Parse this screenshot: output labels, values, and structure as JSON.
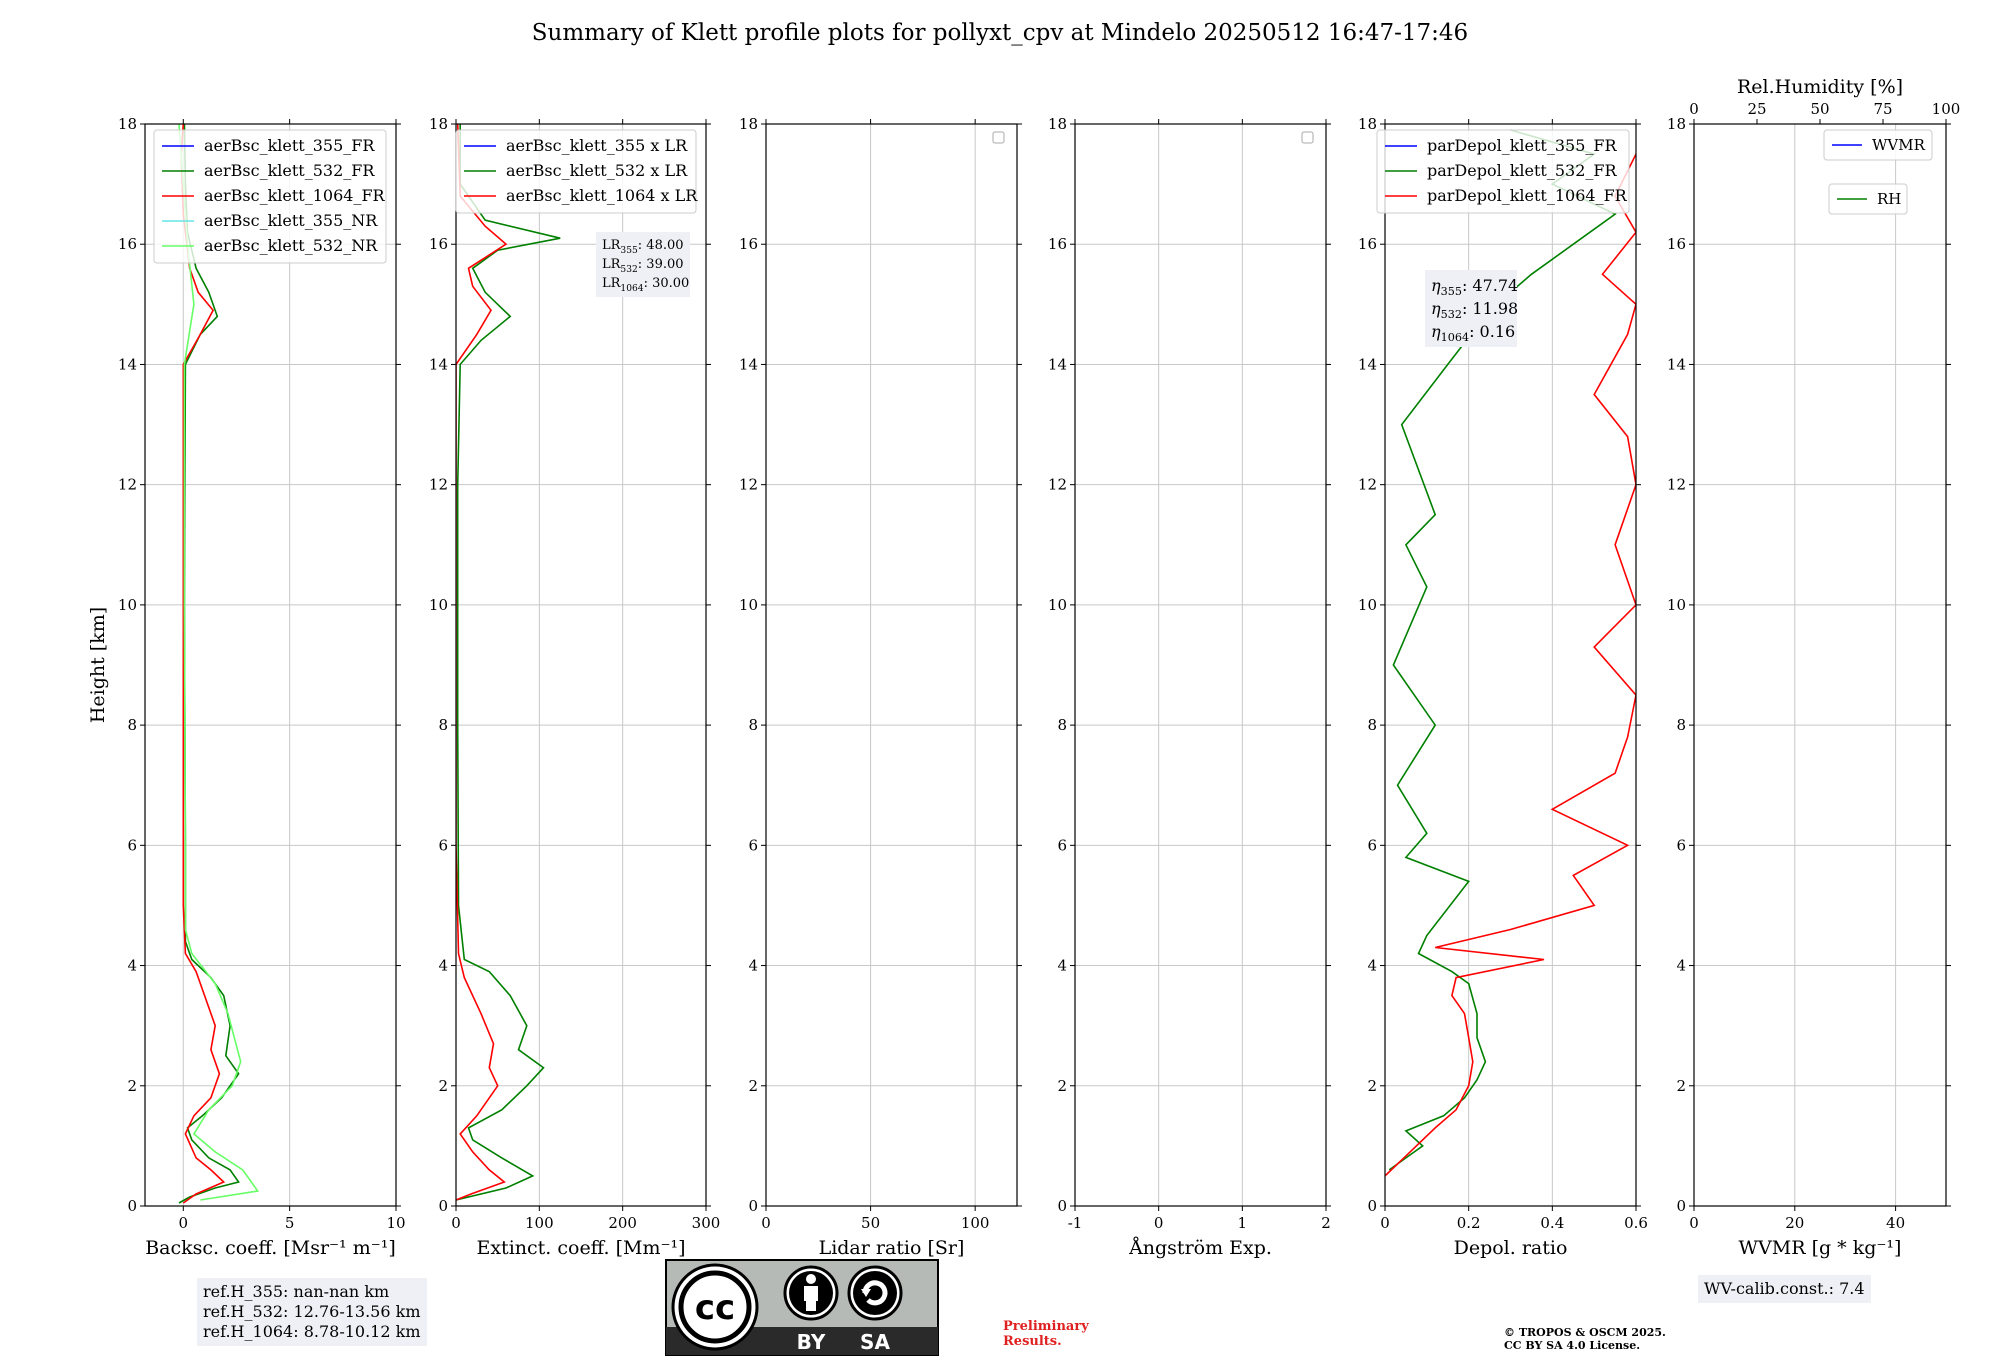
{
  "title": "Summary of Klett profile plots for pollyxt_cpv at Mindelo 20250512 16:47-17:46",
  "colors": {
    "c355": "#0000ff",
    "c532": "#008000",
    "c1064": "#ff0000",
    "c355nr": "#66e5e5",
    "c532nr": "#66ff66"
  },
  "info": {
    "ref_h_355": "ref.H_355: nan-nan km",
    "ref_h_532": "ref.H_532: 12.76-13.56 km",
    "ref_h_1064": "ref.H_1064: 8.78-10.12 km",
    "wv_calib": "WV-calib.const.: 7.4",
    "preliminary_1": "Preliminary",
    "preliminary_2": "Results.",
    "copyright_1": "© TROPOS & OSCM 2025.",
    "copyright_2": "CC BY SA 4.0 License.",
    "cc_badge": {
      "icon": "cc-by-sa-license-icon",
      "by": "BY",
      "sa": "SA"
    }
  },
  "chart_data": [
    {
      "type": "line",
      "id": "backscatter",
      "xlabel": "Backsc. coeff. [Msr⁻¹ m⁻¹]",
      "ylabel": "Height [km]",
      "xlim": [
        -1.8,
        10
      ],
      "ylim": [
        0,
        18
      ],
      "xticks": [
        0,
        5,
        10
      ],
      "yticks": [
        0,
        2,
        4,
        6,
        8,
        10,
        12,
        14,
        16,
        18
      ],
      "grid": true,
      "legend_position": "upper-left",
      "series": [
        {
          "name": "aerBsc_klett_355_FR",
          "color": "#0000ff",
          "points": []
        },
        {
          "name": "aerBsc_klett_532_FR",
          "color": "#008000",
          "points": [
            [
              -0.2,
              0.05
            ],
            [
              0.3,
              0.15
            ],
            [
              1.5,
              0.3
            ],
            [
              2.6,
              0.4
            ],
            [
              2.2,
              0.6
            ],
            [
              1.2,
              0.8
            ],
            [
              0.4,
              1.1
            ],
            [
              0.2,
              1.3
            ],
            [
              0.9,
              1.5
            ],
            [
              1.8,
              1.8
            ],
            [
              2.6,
              2.2
            ],
            [
              2.0,
              2.5
            ],
            [
              2.2,
              3.0
            ],
            [
              1.9,
              3.5
            ],
            [
              1.3,
              3.8
            ],
            [
              0.4,
              4.1
            ],
            [
              0.1,
              4.4
            ],
            [
              0.1,
              6
            ],
            [
              0.05,
              10
            ],
            [
              0.1,
              14
            ],
            [
              0.8,
              14.5
            ],
            [
              1.6,
              14.8
            ],
            [
              1.2,
              15.2
            ],
            [
              0.6,
              15.6
            ],
            [
              0.2,
              16.2
            ],
            [
              0.1,
              17
            ],
            [
              0.05,
              18
            ]
          ]
        },
        {
          "name": "aerBsc_klett_1064_FR",
          "color": "#ff0000",
          "points": [
            [
              0,
              0.05
            ],
            [
              0.6,
              0.2
            ],
            [
              1.9,
              0.4
            ],
            [
              1.3,
              0.6
            ],
            [
              0.6,
              0.8
            ],
            [
              0.1,
              1.2
            ],
            [
              0.5,
              1.5
            ],
            [
              1.3,
              1.8
            ],
            [
              1.7,
              2.2
            ],
            [
              1.3,
              2.6
            ],
            [
              1.5,
              3.0
            ],
            [
              1.0,
              3.5
            ],
            [
              0.6,
              3.9
            ],
            [
              0.1,
              4.2
            ],
            [
              0,
              5
            ],
            [
              0,
              10
            ],
            [
              0,
              14
            ],
            [
              0.8,
              14.5
            ],
            [
              1.4,
              14.9
            ],
            [
              0.7,
              15.2
            ],
            [
              0.3,
              15.6
            ],
            [
              0,
              16.5
            ],
            [
              -0.1,
              17.5
            ],
            [
              0,
              18
            ]
          ]
        },
        {
          "name": "aerBsc_klett_355_NR",
          "color": "#66e5e5",
          "points": []
        },
        {
          "name": "aerBsc_klett_532_NR",
          "color": "#66ff66",
          "points": [
            [
              0.8,
              0.1
            ],
            [
              3.5,
              0.25
            ],
            [
              2.8,
              0.6
            ],
            [
              1.5,
              0.9
            ],
            [
              0.5,
              1.2
            ],
            [
              1.2,
              1.6
            ],
            [
              2.3,
              2.0
            ],
            [
              2.7,
              2.4
            ],
            [
              2.4,
              2.8
            ],
            [
              2.1,
              3.2
            ],
            [
              1.5,
              3.7
            ],
            [
              0.4,
              4.2
            ],
            [
              0.1,
              4.6
            ],
            [
              0.1,
              6
            ],
            [
              0.05,
              10
            ],
            [
              0.05,
              14
            ],
            [
              0.5,
              15
            ],
            [
              0.2,
              16
            ],
            [
              -0.1,
              17.5
            ],
            [
              -0.2,
              18
            ]
          ]
        }
      ],
      "annotations": []
    },
    {
      "type": "line",
      "id": "extinction",
      "xlabel": "Extinct. coeff. [Mm⁻¹]",
      "ylabel": "",
      "xlim": [
        0,
        300
      ],
      "ylim": [
        0,
        18
      ],
      "xticks": [
        0,
        100,
        200,
        300
      ],
      "yticks": [
        0,
        2,
        4,
        6,
        8,
        10,
        12,
        14,
        16,
        18
      ],
      "grid": true,
      "legend_position": "upper-right",
      "series": [
        {
          "name": "aerBsc_klett_355 x LR",
          "color": "#0000ff",
          "points": []
        },
        {
          "name": "aerBsc_klett_532 x LR",
          "color": "#008000",
          "points": [
            [
              0,
              0.1
            ],
            [
              60,
              0.3
            ],
            [
              92,
              0.5
            ],
            [
              55,
              0.8
            ],
            [
              20,
              1.1
            ],
            [
              15,
              1.3
            ],
            [
              55,
              1.6
            ],
            [
              85,
              2.0
            ],
            [
              105,
              2.3
            ],
            [
              75,
              2.6
            ],
            [
              85,
              3.0
            ],
            [
              65,
              3.5
            ],
            [
              40,
              3.9
            ],
            [
              10,
              4.1
            ],
            [
              3,
              5
            ],
            [
              2,
              8
            ],
            [
              2,
              12
            ],
            [
              5,
              14
            ],
            [
              30,
              14.4
            ],
            [
              65,
              14.8
            ],
            [
              35,
              15.2
            ],
            [
              20,
              15.6
            ],
            [
              50,
              15.9
            ],
            [
              125,
              16.1
            ],
            [
              35,
              16.4
            ],
            [
              5,
              17
            ],
            [
              5,
              18
            ]
          ]
        },
        {
          "name": "aerBsc_klett_1064 x LR",
          "color": "#ff0000",
          "points": [
            [
              0,
              0.1
            ],
            [
              18,
              0.2
            ],
            [
              58,
              0.4
            ],
            [
              40,
              0.6
            ],
            [
              20,
              0.9
            ],
            [
              5,
              1.2
            ],
            [
              25,
              1.5
            ],
            [
              50,
              2.0
            ],
            [
              40,
              2.3
            ],
            [
              45,
              2.7
            ],
            [
              30,
              3.2
            ],
            [
              10,
              3.8
            ],
            [
              3,
              4.2
            ],
            [
              0,
              6
            ],
            [
              0,
              12
            ],
            [
              0,
              14
            ],
            [
              25,
              14.5
            ],
            [
              42,
              14.9
            ],
            [
              20,
              15.3
            ],
            [
              15,
              15.6
            ],
            [
              60,
              16.0
            ],
            [
              35,
              16.3
            ],
            [
              5,
              16.8
            ],
            [
              2,
              18
            ]
          ]
        }
      ],
      "annotations": [
        {
          "label": "LR",
          "sub": "355",
          "value": ": 48.00"
        },
        {
          "label": "LR",
          "sub": "532",
          "value": ": 39.00"
        },
        {
          "label": "LR",
          "sub": "1064",
          "value": ": 30.00"
        }
      ]
    },
    {
      "type": "line",
      "id": "lidar_ratio",
      "xlabel": "Lidar ratio [Sr]",
      "ylabel": "",
      "xlim": [
        0,
        120
      ],
      "ylim": [
        0,
        18
      ],
      "xticks": [
        0,
        50,
        100
      ],
      "yticks": [
        0,
        2,
        4,
        6,
        8,
        10,
        12,
        14,
        16,
        18
      ],
      "grid": true,
      "legend_position": "upper-right",
      "series": [],
      "annotations": []
    },
    {
      "type": "line",
      "id": "angstrom",
      "xlabel": "Ångström Exp.",
      "ylabel": "",
      "xlim": [
        -1,
        2
      ],
      "ylim": [
        0,
        18
      ],
      "xticks": [
        -1,
        0,
        1,
        2
      ],
      "yticks": [
        0,
        2,
        4,
        6,
        8,
        10,
        12,
        14,
        16,
        18
      ],
      "grid": true,
      "legend_position": "upper-right",
      "series": [],
      "annotations": []
    },
    {
      "type": "line",
      "id": "depol",
      "xlabel": "Depol. ratio",
      "ylabel": "",
      "xlim": [
        0,
        0.6
      ],
      "ylim": [
        0,
        18
      ],
      "xticks": [
        0.0,
        0.2,
        0.4,
        0.6
      ],
      "yticks": [
        0,
        2,
        4,
        6,
        8,
        10,
        12,
        14,
        16,
        18
      ],
      "grid": true,
      "legend_position": "upper-left",
      "series": [
        {
          "name": "parDepol_klett_355_FR",
          "color": "#0000ff",
          "points": []
        },
        {
          "name": "parDepol_klett_532_FR",
          "color": "#008000",
          "points": [
            [
              0.01,
              0.6
            ],
            [
              0.05,
              0.8
            ],
            [
              0.09,
              1.0
            ],
            [
              0.05,
              1.25
            ],
            [
              0.14,
              1.5
            ],
            [
              0.19,
              1.8
            ],
            [
              0.22,
              2.1
            ],
            [
              0.24,
              2.4
            ],
            [
              0.22,
              2.8
            ],
            [
              0.22,
              3.2
            ],
            [
              0.2,
              3.7
            ],
            [
              0.16,
              3.9
            ],
            [
              0.08,
              4.2
            ],
            [
              0.1,
              4.5
            ],
            [
              0.2,
              5.4
            ],
            [
              0.05,
              5.8
            ],
            [
              0.1,
              6.2
            ],
            [
              0.03,
              7
            ],
            [
              0.12,
              8
            ],
            [
              0.02,
              9
            ],
            [
              0.1,
              10.3
            ],
            [
              0.05,
              11
            ],
            [
              0.12,
              11.5
            ],
            [
              0.04,
              13
            ],
            [
              0.15,
              14
            ],
            [
              0.25,
              14.9
            ],
            [
              0.35,
              15.5
            ],
            [
              0.45,
              16
            ],
            [
              0.55,
              16.5
            ],
            [
              0.4,
              17
            ],
            [
              0.5,
              17.5
            ],
            [
              0.3,
              17.9
            ]
          ]
        },
        {
          "name": "parDepol_klett_1064_FR",
          "color": "#ff0000",
          "points": [
            [
              0.0,
              0.5
            ],
            [
              0.06,
              0.9
            ],
            [
              0.12,
              1.3
            ],
            [
              0.17,
              1.6
            ],
            [
              0.2,
              2.0
            ],
            [
              0.21,
              2.4
            ],
            [
              0.2,
              2.8
            ],
            [
              0.19,
              3.2
            ],
            [
              0.16,
              3.5
            ],
            [
              0.17,
              3.8
            ],
            [
              0.38,
              4.1
            ],
            [
              0.12,
              4.3
            ],
            [
              0.3,
              4.6
            ],
            [
              0.5,
              5.0
            ],
            [
              0.45,
              5.5
            ],
            [
              0.58,
              6.0
            ],
            [
              0.4,
              6.6
            ],
            [
              0.55,
              7.2
            ],
            [
              0.58,
              7.8
            ],
            [
              0.6,
              8.5
            ],
            [
              0.5,
              9.3
            ],
            [
              0.6,
              10
            ],
            [
              0.55,
              11
            ],
            [
              0.6,
              12
            ],
            [
              0.58,
              12.8
            ],
            [
              0.5,
              13.5
            ],
            [
              0.58,
              14.5
            ],
            [
              0.6,
              15
            ],
            [
              0.52,
              15.5
            ],
            [
              0.6,
              16.2
            ],
            [
              0.55,
              16.8
            ],
            [
              0.6,
              17.5
            ]
          ]
        }
      ],
      "annotations": [
        {
          "label": "η",
          "sub": "355",
          "value": ": 47.74"
        },
        {
          "label": "η",
          "sub": "532",
          "value": ": 11.98"
        },
        {
          "label": "η",
          "sub": "1064",
          "value": ": 0.16"
        }
      ]
    },
    {
      "type": "line",
      "id": "wvmr",
      "xlabel": "WVMR [g * kg⁻¹]",
      "top_xlabel": "Rel.Humidity [%]",
      "ylabel": "",
      "xlim": [
        0,
        50
      ],
      "ylim": [
        0,
        18
      ],
      "xticks": [
        0,
        20,
        40
      ],
      "top_xticks": [
        0,
        25,
        50,
        75,
        100
      ],
      "yticks": [
        0,
        2,
        4,
        6,
        8,
        10,
        12,
        14,
        16,
        18
      ],
      "grid": true,
      "legend_position": "upper-right",
      "series": [
        {
          "name": "WVMR",
          "color": "#0000ff",
          "points": []
        },
        {
          "name": "RH",
          "color": "#008000",
          "points": []
        }
      ],
      "annotations": []
    }
  ]
}
